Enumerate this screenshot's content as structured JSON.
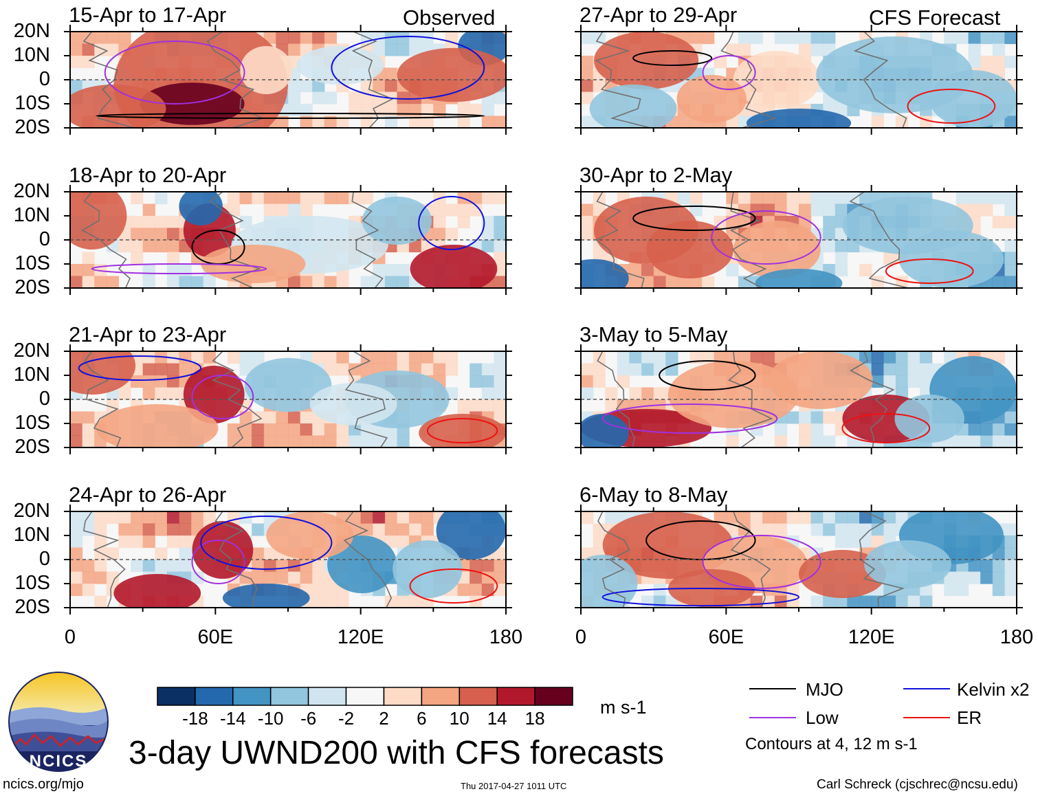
{
  "figure": {
    "main_title": "3-day UWND200 with CFS forecasts",
    "observed_label": "Observed",
    "forecast_label": "CFS Forecast",
    "credit_url": "ncics.org/mjo",
    "timestamp": "Thu 2017-04-27 1011 UTC",
    "credit_author": "Carl Schreck (cjschrec@ncsu.edu)",
    "logo_text": "NCICS"
  },
  "colorbar": {
    "units": "m s-1",
    "ticks": [
      "-18",
      "-14",
      "-10",
      "-6",
      "-2",
      "2",
      "6",
      "10",
      "14",
      "18"
    ],
    "colors": [
      "#0b3064",
      "#2468ad",
      "#4393c3",
      "#92c5de",
      "#d1e5f0",
      "#f7f7f7",
      "#fddbc7",
      "#f4a582",
      "#d6604d",
      "#b2182b",
      "#67001f"
    ]
  },
  "legend": {
    "items": [
      {
        "label": "MJO",
        "color": "#000000"
      },
      {
        "label": "Kelvin x2",
        "color": "#1010dd"
      },
      {
        "label": "Low",
        "color": "#a030e0"
      },
      {
        "label": "ER",
        "color": "#ee1111"
      }
    ],
    "note": "Contours at 4, 12 m s-1"
  },
  "chart_data": [
    {
      "type": "heatmap",
      "title": "15-Apr to 17-Apr",
      "source": "Observed",
      "xlim": [
        0,
        180
      ],
      "ylim": [
        -20,
        20
      ],
      "x_ticks": [
        "0",
        "60E",
        "120E",
        "180"
      ],
      "y_ticks": [
        "20N",
        "10N",
        "0",
        "10S",
        "20S"
      ],
      "show_x_ticks": false
    },
    {
      "type": "heatmap",
      "title": "18-Apr to 20-Apr",
      "source": "Observed",
      "xlim": [
        0,
        180
      ],
      "ylim": [
        -20,
        20
      ],
      "x_ticks": [
        "0",
        "60E",
        "120E",
        "180"
      ],
      "y_ticks": [
        "20N",
        "10N",
        "0",
        "10S",
        "20S"
      ],
      "show_x_ticks": false
    },
    {
      "type": "heatmap",
      "title": "21-Apr to 23-Apr",
      "source": "Observed",
      "xlim": [
        0,
        180
      ],
      "ylim": [
        -20,
        20
      ],
      "x_ticks": [
        "0",
        "60E",
        "120E",
        "180"
      ],
      "y_ticks": [
        "20N",
        "10N",
        "0",
        "10S",
        "20S"
      ],
      "show_x_ticks": false
    },
    {
      "type": "heatmap",
      "title": "24-Apr to 26-Apr",
      "source": "Observed",
      "xlim": [
        0,
        180
      ],
      "ylim": [
        -20,
        20
      ],
      "x_ticks": [
        "0",
        "60E",
        "120E",
        "180"
      ],
      "y_ticks": [
        "20N",
        "10N",
        "0",
        "10S",
        "20S"
      ],
      "show_x_ticks": true
    },
    {
      "type": "heatmap",
      "title": "27-Apr to 29-Apr",
      "source": "CFS Forecast",
      "xlim": [
        0,
        180
      ],
      "ylim": [
        -20,
        20
      ],
      "x_ticks": [
        "0",
        "60E",
        "120E",
        "180"
      ],
      "y_ticks": [],
      "show_x_ticks": false
    },
    {
      "type": "heatmap",
      "title": "30-Apr to 2-May",
      "source": "CFS Forecast",
      "xlim": [
        0,
        180
      ],
      "ylim": [
        -20,
        20
      ],
      "x_ticks": [
        "0",
        "60E",
        "120E",
        "180"
      ],
      "y_ticks": [],
      "show_x_ticks": false
    },
    {
      "type": "heatmap",
      "title": "3-May to 5-May",
      "source": "CFS Forecast",
      "xlim": [
        0,
        180
      ],
      "ylim": [
        -20,
        20
      ],
      "x_ticks": [
        "0",
        "60E",
        "120E",
        "180"
      ],
      "y_ticks": [],
      "show_x_ticks": false
    },
    {
      "type": "heatmap",
      "title": "6-May to 8-May",
      "source": "CFS Forecast",
      "xlim": [
        0,
        180
      ],
      "ylim": [
        -20,
        20
      ],
      "x_ticks": [
        "0",
        "60E",
        "120E",
        "180"
      ],
      "y_ticks": [],
      "show_x_ticks": true
    }
  ]
}
